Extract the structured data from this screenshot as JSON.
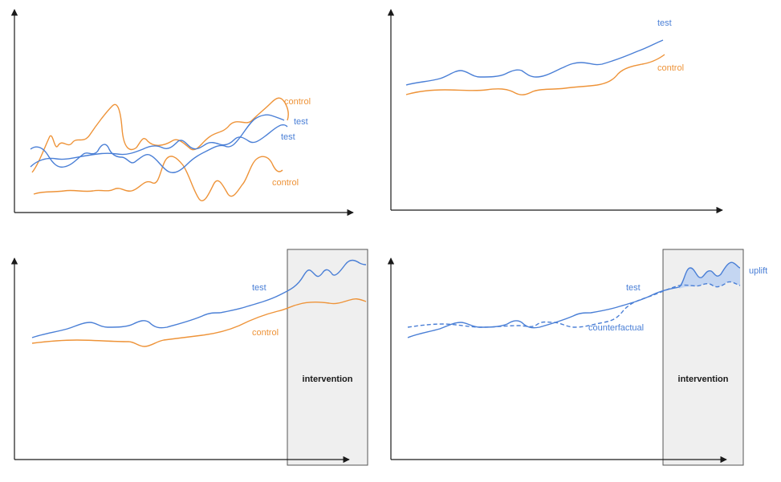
{
  "colors": {
    "test": "#4a7fd6",
    "control": "#ee9338",
    "axis": "#1a1a1a",
    "intervention_fill": "#efefef",
    "intervention_stroke": "#555555",
    "uplift_fill": "#b9cff2"
  },
  "panels": {
    "p1": {
      "labels": {
        "control_top": "control",
        "test_a": "test",
        "test_b": "test",
        "control_bottom": "control"
      }
    },
    "p2": {
      "labels": {
        "test": "test",
        "control": "control"
      }
    },
    "p3": {
      "labels": {
        "test": "test",
        "control": "control",
        "intervention": "intervention"
      }
    },
    "p4": {
      "labels": {
        "test": "test",
        "counterfactual": "counterfactual",
        "uplift": "uplift",
        "intervention": "intervention"
      }
    }
  }
}
